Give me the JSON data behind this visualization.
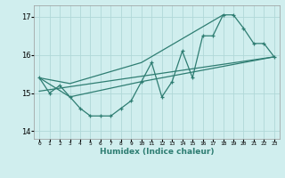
{
  "xlabel": "Humidex (Indice chaleur)",
  "bg_color": "#d0eeee",
  "grid_color": "#b0d8d8",
  "line_color": "#2e7d72",
  "xlim": [
    -0.5,
    23.5
  ],
  "ylim": [
    13.8,
    17.3
  ],
  "yticks": [
    14,
    15,
    16,
    17
  ],
  "xtick_labels": [
    "0",
    "1",
    "2",
    "3",
    "4",
    "5",
    "6",
    "7",
    "8",
    "9",
    "10",
    "11",
    "12",
    "13",
    "14",
    "15",
    "16",
    "17",
    "18",
    "19",
    "20",
    "21",
    "22",
    "23"
  ],
  "main_line_x": [
    0,
    1,
    2,
    3,
    4,
    5,
    6,
    7,
    8,
    9,
    10,
    11,
    12,
    13,
    14,
    15,
    16,
    17,
    18,
    19,
    20,
    21,
    22,
    23
  ],
  "main_line_y": [
    15.4,
    15.0,
    15.2,
    14.9,
    14.6,
    14.4,
    14.4,
    14.4,
    14.6,
    14.8,
    15.3,
    15.8,
    14.9,
    15.3,
    16.1,
    15.4,
    16.5,
    16.5,
    17.05,
    17.05,
    16.7,
    16.3,
    16.3,
    15.95
  ],
  "upper_line_x": [
    0,
    3,
    10,
    18
  ],
  "upper_line_y": [
    15.4,
    15.25,
    15.8,
    17.05
  ],
  "lower_line_x": [
    0,
    3,
    10,
    23
  ],
  "lower_line_y": [
    15.4,
    14.9,
    15.3,
    15.95
  ],
  "trend_line_x": [
    0,
    23
  ],
  "trend_line_y": [
    15.05,
    15.95
  ]
}
